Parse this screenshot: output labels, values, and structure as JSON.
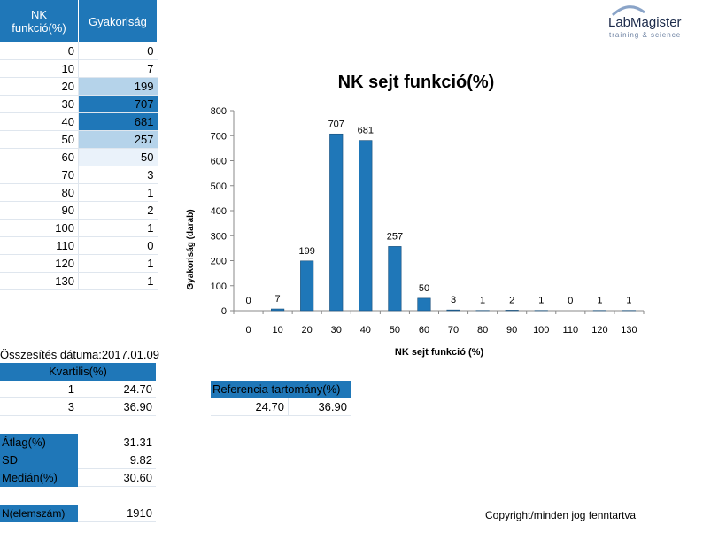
{
  "table": {
    "col1_header_line1": "NK",
    "col1_header_line2": "funkció(%)",
    "col2_header": "Gyakoriság",
    "rows": [
      {
        "nk": "0",
        "freq": "0"
      },
      {
        "nk": "10",
        "freq": "7"
      },
      {
        "nk": "20",
        "freq": "199"
      },
      {
        "nk": "30",
        "freq": "707"
      },
      {
        "nk": "40",
        "freq": "681"
      },
      {
        "nk": "50",
        "freq": "257"
      },
      {
        "nk": "60",
        "freq": "50"
      },
      {
        "nk": "70",
        "freq": "3"
      },
      {
        "nk": "80",
        "freq": "1"
      },
      {
        "nk": "90",
        "freq": "2"
      },
      {
        "nk": "100",
        "freq": "1"
      },
      {
        "nk": "110",
        "freq": "0"
      },
      {
        "nk": "120",
        "freq": "1"
      },
      {
        "nk": "130",
        "freq": "1"
      }
    ],
    "row_shading": [
      "none",
      "none",
      "light",
      "dark",
      "dark",
      "light",
      "xlight",
      "none",
      "none",
      "none",
      "none",
      "none",
      "none",
      "none"
    ]
  },
  "logo": {
    "main": "LabMagister",
    "sub": "training & science"
  },
  "summary": {
    "date_label": "Összesítés dátuma:2017.01.09",
    "quartiles_header": "Kvartilis(%)",
    "quartiles": [
      {
        "label": "1",
        "value": "24.70"
      },
      {
        "label": "3",
        "value": "36.90"
      }
    ],
    "mean_label": "Átlag(%)",
    "mean_value": "31.31",
    "sd_label": "SD",
    "sd_value": "9.82",
    "median_label": "Medián(%)",
    "median_value": "30.60",
    "n_label": "N(elemszám)",
    "n_value": "1910"
  },
  "reference": {
    "header": "Referencia tartomány(%)",
    "low": "24.70",
    "high": "36.90"
  },
  "copyright": "Copyright/minden jog fenntartva",
  "chart_data": {
    "type": "bar",
    "title": "NK sejt funkció(%)",
    "xlabel": "NK sejt funkció  (%)",
    "ylabel": "Gyakoriság  (darab)",
    "categories": [
      "0",
      "10",
      "20",
      "30",
      "40",
      "50",
      "60",
      "70",
      "80",
      "90",
      "100",
      "110",
      "120",
      "130"
    ],
    "values": [
      0,
      7,
      199,
      707,
      681,
      257,
      50,
      3,
      1,
      2,
      1,
      0,
      1,
      1
    ],
    "ylim": [
      0,
      800
    ],
    "yticks": [
      0,
      100,
      200,
      300,
      400,
      500,
      600,
      700,
      800
    ],
    "bar_color": "#1f77b8",
    "grid": false
  }
}
